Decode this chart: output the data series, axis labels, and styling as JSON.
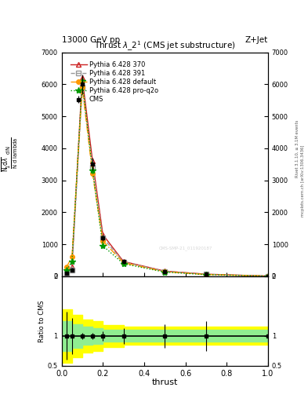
{
  "title_top_left": "13000 GeV pp",
  "title_top_right": "Z+Jet",
  "plot_title": "Thrust $\\lambda\\_2^1$ (CMS jet substructure)",
  "xlabel": "thrust",
  "ylabel_ratio": "Ratio to CMS",
  "right_text1": "Rivet 3.1.10, ≥ 3.1M events",
  "right_text2": "mcplots.cern.ch [arXiv:1306.3436]",
  "watermark": "CMS-SMP-21_011920187",
  "x_pts": [
    0.025,
    0.05,
    0.1,
    0.15,
    0.2,
    0.3,
    0.5,
    0.7,
    1.0
  ],
  "cms_y": [
    100,
    200,
    6000,
    3500,
    1200,
    450,
    150,
    60,
    5
  ],
  "cms_yerr": [
    40,
    60,
    300,
    200,
    100,
    60,
    30,
    15,
    3
  ],
  "py370_y": [
    130,
    300,
    6200,
    3600,
    1300,
    460,
    160,
    65,
    5
  ],
  "py391_y": [
    100,
    200,
    5900,
    3400,
    1200,
    445,
    155,
    60,
    5
  ],
  "pydef_y": [
    300,
    600,
    5900,
    3200,
    1100,
    420,
    140,
    55,
    4
  ],
  "pyproq2o_y": [
    200,
    450,
    6100,
    3300,
    950,
    390,
    130,
    50,
    4
  ],
  "color_cms": "#000000",
  "color_370": "#cc2222",
  "color_391": "#999999",
  "color_def": "#ff9900",
  "color_proq2o": "#009900",
  "xlim": [
    0,
    1
  ],
  "ylim_main": [
    0,
    7000
  ],
  "ylim_ratio": [
    0.5,
    2.0
  ],
  "yticks_main": [
    0,
    1000,
    2000,
    3000,
    4000,
    5000,
    6000,
    7000
  ],
  "yticks_ratio": [
    0.5,
    1.0,
    2.0
  ],
  "bg_color": "#ffffff",
  "legend_entries": [
    "CMS",
    "Pythia 6.428 370",
    "Pythia 6.428 391",
    "Pythia 6.428 default",
    "Pythia 6.428 pro-q2o"
  ],
  "ratio_yellow_x": [
    0.0,
    0.025,
    0.05,
    0.1,
    0.15,
    0.2,
    0.3,
    0.5,
    0.7,
    1.0
  ],
  "ratio_yellow_hi": [
    1.45,
    1.45,
    1.35,
    1.28,
    1.25,
    1.18,
    1.15,
    1.15,
    1.15,
    1.15
  ],
  "ratio_yellow_lo": [
    0.55,
    0.55,
    0.65,
    0.72,
    0.75,
    0.82,
    0.85,
    0.85,
    0.85,
    0.85
  ],
  "ratio_green_hi": [
    1.25,
    1.25,
    1.2,
    1.15,
    1.13,
    1.1,
    1.1,
    1.1,
    1.1,
    1.1
  ],
  "ratio_green_lo": [
    0.75,
    0.75,
    0.8,
    0.85,
    0.87,
    0.9,
    0.9,
    0.9,
    0.9,
    0.9
  ]
}
